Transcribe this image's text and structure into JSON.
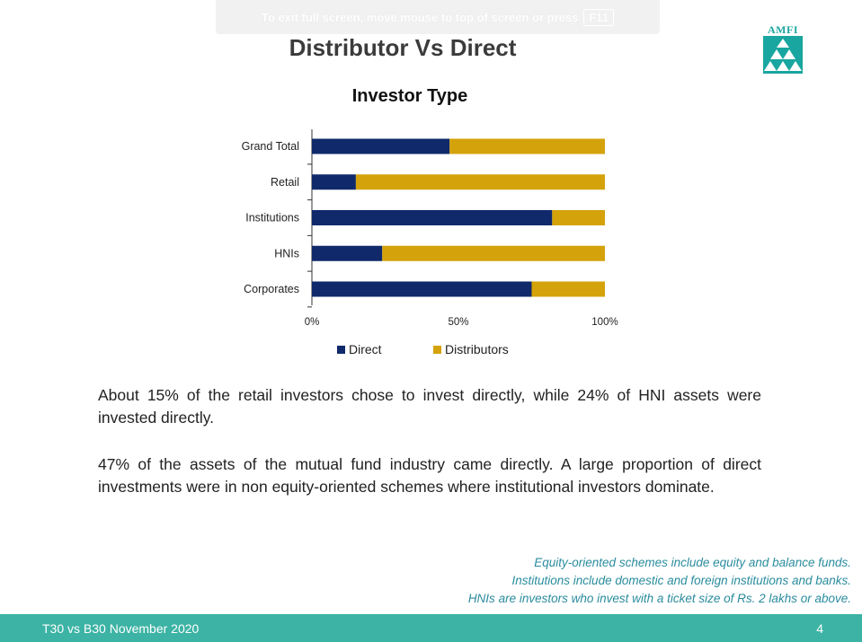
{
  "fullscreen_banner": {
    "text": "To exit full screen, move mouse to top of screen or press",
    "key": "F11"
  },
  "slide": {
    "title": "Distributor Vs Direct",
    "logo_text": "AMFI",
    "paragraphs": [
      "About 15% of the retail investors chose to invest directly, while 24% of HNI assets were invested directly.",
      "47% of the assets of the mutual fund industry came directly. A large proportion of direct investments were in non equity-oriented schemes where institutional investors dominate."
    ],
    "notes": [
      "Equity-oriented schemes include equity and balance funds.",
      "Institutions include domestic and foreign institutions and banks.",
      "HNIs are investors who invest with a ticket size of Rs. 2 lakhs or above."
    ],
    "footer_left": "T30  vs B30 November 2020",
    "page_number": "4"
  },
  "colors": {
    "direct": "#10296b",
    "distributors": "#d4a20a",
    "axis": "#333333",
    "footer": "#3cb3a4"
  },
  "chart_data": {
    "type": "bar",
    "orientation": "horizontal",
    "stacked": "percent",
    "title": "Investor  Type",
    "categories": [
      "Grand Total",
      "Retail",
      "Institutions",
      "HNIs",
      "Corporates"
    ],
    "series": [
      {
        "name": "Direct",
        "values": [
          47,
          15,
          82,
          24,
          75
        ]
      },
      {
        "name": "Distributors",
        "values": [
          53,
          85,
          18,
          76,
          25
        ]
      }
    ],
    "xticks": [
      "0%",
      "50%",
      "100%"
    ],
    "xlim": [
      0,
      100
    ],
    "grid": false,
    "legend": "bottom"
  }
}
